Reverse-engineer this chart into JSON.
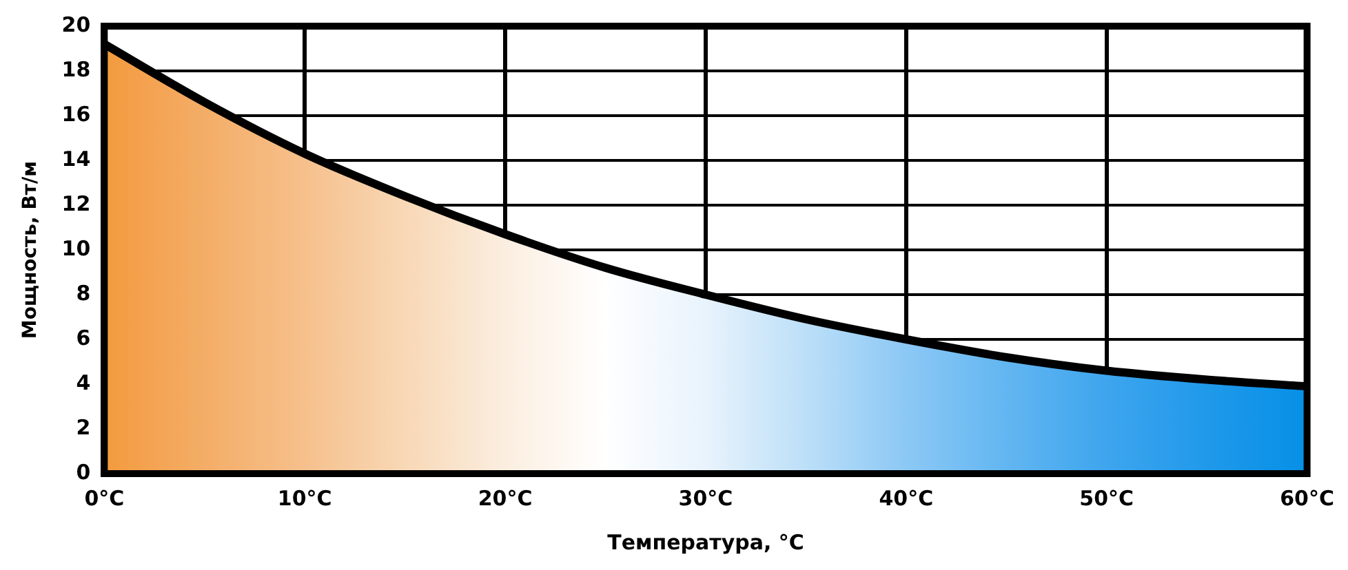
{
  "chart_data": {
    "type": "area",
    "xlabel": "Температура, °C",
    "ylabel": "Мощность, Вт/м",
    "x": [
      0,
      5,
      10,
      15,
      20,
      25,
      30,
      35,
      40,
      45,
      50,
      55,
      60
    ],
    "values": [
      19.2,
      16.6,
      14.3,
      12.4,
      10.7,
      9.2,
      8.0,
      6.9,
      6.0,
      5.2,
      4.6,
      4.2,
      3.9
    ],
    "color": "#000000",
    "colors": [
      "#f39a3e",
      "#f4ad67",
      "#f6c08c",
      "#f8d8b6",
      "#fbeee0",
      "#ffffff",
      "#e8f3fc",
      "#bcdff8",
      "#8cc8f5",
      "#62b6f1",
      "#3ea5ee",
      "#2099ea",
      "#0590e6"
    ],
    "xlim": [
      0,
      60
    ],
    "xticks": [
      {
        "value": 0,
        "label": "0°C"
      },
      {
        "value": 10,
        "label": "10°C"
      },
      {
        "value": 20,
        "label": "20°C"
      },
      {
        "value": 30,
        "label": "30°C"
      },
      {
        "value": 40,
        "label": "40°C"
      },
      {
        "value": 50,
        "label": "50°C"
      },
      {
        "value": 60,
        "label": "60°C"
      }
    ],
    "ylim": [
      0,
      20
    ],
    "yticks": [
      0,
      2,
      4,
      6,
      8,
      10,
      12,
      14,
      16,
      18,
      20
    ],
    "grid": true,
    "legend": false,
    "marker": "none",
    "line_style": "solid"
  }
}
